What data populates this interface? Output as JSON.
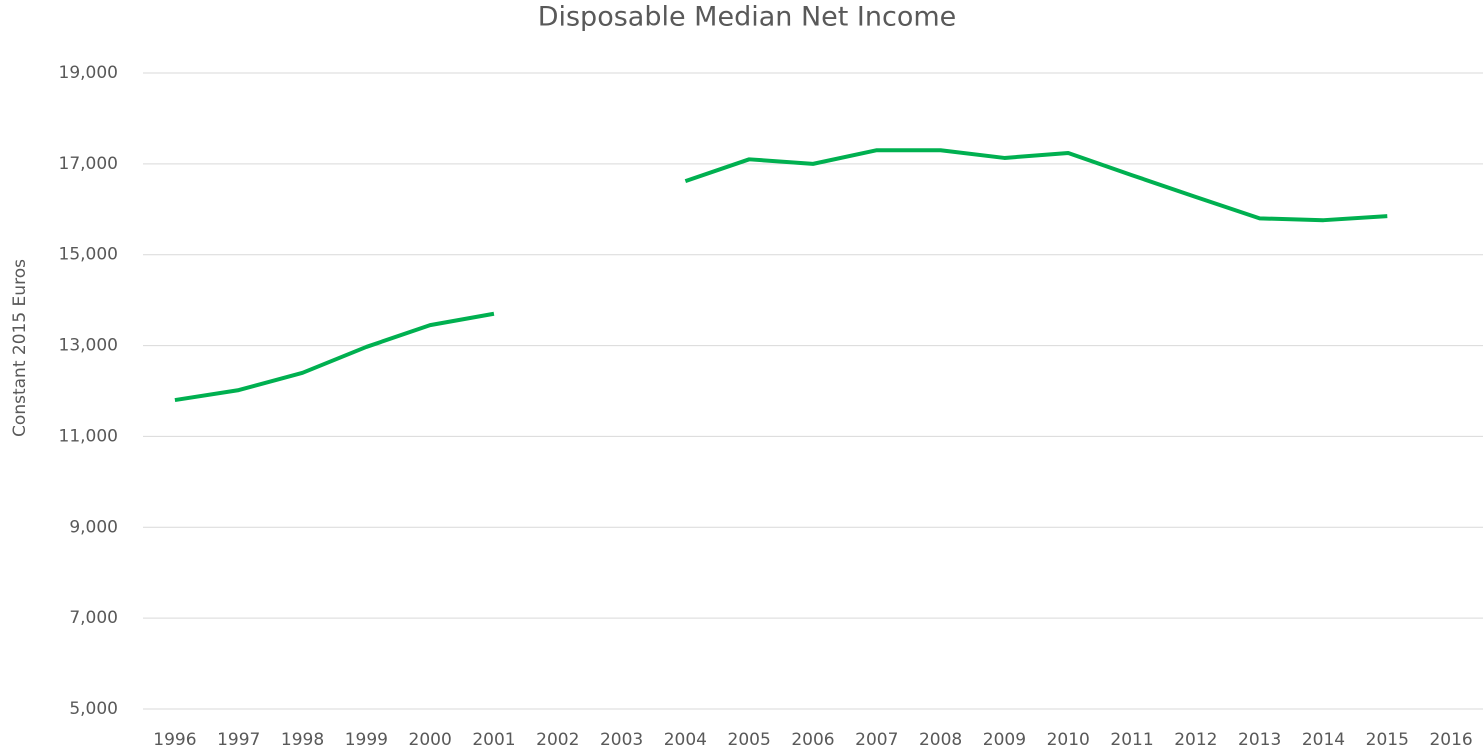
{
  "chart_data": {
    "type": "line",
    "title": "Disposable Median Net Income",
    "y_label": "Constant 2015 Euros",
    "categories": [
      "1996",
      "1997",
      "1998",
      "1999",
      "2000",
      "2001",
      "2002",
      "2003",
      "2004",
      "2005",
      "2006",
      "2007",
      "2008",
      "2009",
      "2010",
      "2011",
      "2012",
      "2013",
      "2014",
      "2015",
      "2016"
    ],
    "series": [
      {
        "name": "Disposable Median Net Income",
        "color": "#00b050",
        "values": [
          11800,
          12020,
          12400,
          12970,
          13450,
          13700,
          null,
          null,
          16620,
          17100,
          17000,
          17300,
          17300,
          17130,
          17240,
          16750,
          16270,
          15800,
          15760,
          15850,
          null
        ]
      }
    ],
    "ylim": [
      5000,
      19000
    ],
    "yticks": [
      {
        "value": 5000,
        "label": "5,000"
      },
      {
        "value": 7000,
        "label": "7,000"
      },
      {
        "value": 9000,
        "label": "9,000"
      },
      {
        "value": 11000,
        "label": "11,000"
      },
      {
        "value": 13000,
        "label": "13,000"
      },
      {
        "value": 15000,
        "label": "15,000"
      },
      {
        "value": 17000,
        "label": "17,000"
      },
      {
        "value": 19000,
        "label": "19,000"
      }
    ],
    "grid": true
  }
}
